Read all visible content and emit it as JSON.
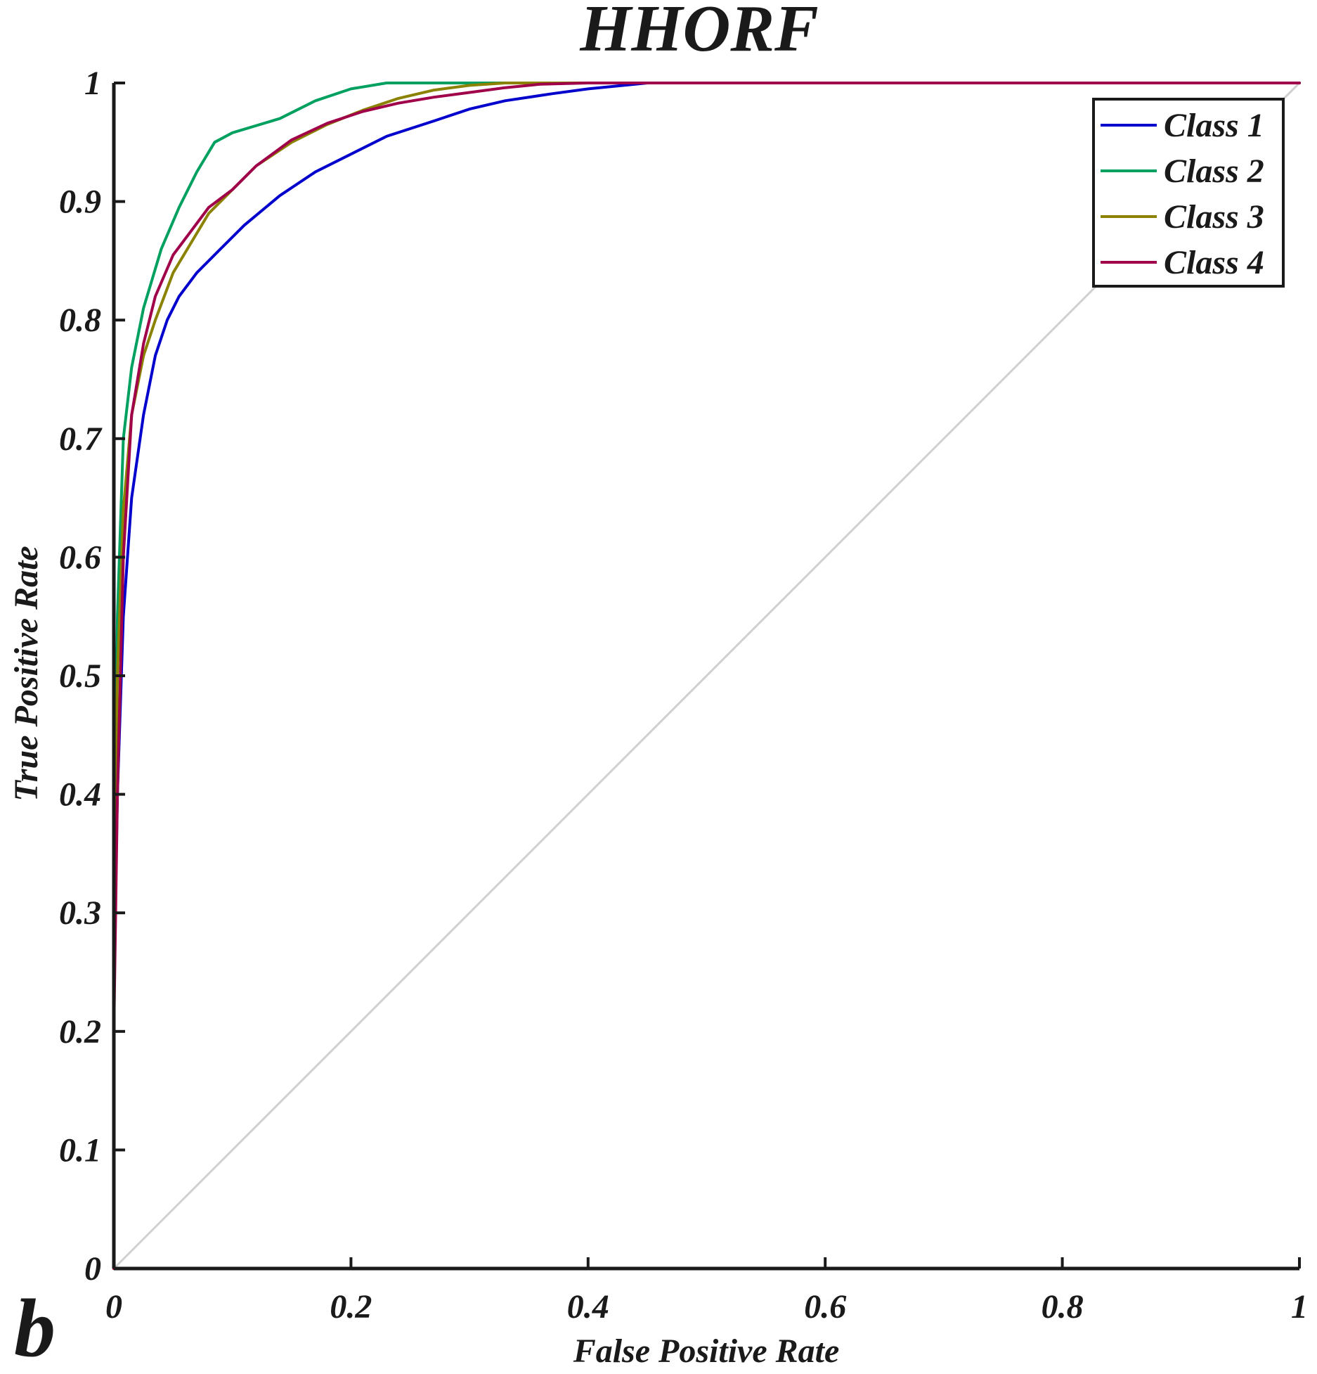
{
  "chart_data": {
    "type": "line",
    "title": "HHORF",
    "panel_label": "b",
    "xlabel": "False Positive Rate",
    "ylabel": "True Positive Rate",
    "xlim": [
      0,
      1
    ],
    "ylim": [
      0,
      1
    ],
    "xticks": [
      0,
      0.2,
      0.4,
      0.6,
      0.8,
      1
    ],
    "xtick_labels": [
      "0",
      "0.2",
      "0.4",
      "0.6",
      "0.8",
      "1"
    ],
    "yticks": [
      0,
      0.1,
      0.2,
      0.3,
      0.4,
      0.5,
      0.6,
      0.7,
      0.8,
      0.9,
      1
    ],
    "ytick_labels": [
      "0",
      "0.1",
      "0.2",
      "0.3",
      "0.4",
      "0.5",
      "0.6",
      "0.7",
      "0.8",
      "0.9",
      "1"
    ],
    "grid": false,
    "legend_position": "top-right",
    "reference_line": {
      "x": [
        0,
        1
      ],
      "y": [
        0,
        1
      ],
      "color": "#d0d0d0"
    },
    "series": [
      {
        "name": "Class 1",
        "color": "#0000cc",
        "x": [
          0,
          0,
          0.003,
          0.008,
          0.015,
          0.025,
          0.035,
          0.045,
          0.055,
          0.07,
          0.09,
          0.11,
          0.14,
          0.17,
          0.2,
          0.23,
          0.27,
          0.3,
          0.33,
          0.37,
          0.4,
          0.43,
          0.45,
          1
        ],
        "y": [
          0,
          0.25,
          0.4,
          0.55,
          0.65,
          0.72,
          0.77,
          0.8,
          0.82,
          0.84,
          0.86,
          0.88,
          0.905,
          0.925,
          0.94,
          0.955,
          0.968,
          0.978,
          0.985,
          0.991,
          0.995,
          0.998,
          1,
          1
        ]
      },
      {
        "name": "Class 2",
        "color": "#00a060",
        "x": [
          0,
          0,
          0.003,
          0.008,
          0.015,
          0.025,
          0.04,
          0.055,
          0.07,
          0.085,
          0.1,
          0.14,
          0.17,
          0.2,
          0.23,
          1
        ],
        "y": [
          0,
          0.3,
          0.55,
          0.7,
          0.76,
          0.81,
          0.86,
          0.895,
          0.925,
          0.95,
          0.958,
          0.97,
          0.985,
          0.995,
          1,
          1
        ]
      },
      {
        "name": "Class 3",
        "color": "#8a8200",
        "x": [
          0,
          0,
          0.003,
          0.008,
          0.015,
          0.025,
          0.035,
          0.05,
          0.065,
          0.08,
          0.1,
          0.12,
          0.15,
          0.18,
          0.21,
          0.24,
          0.27,
          0.3,
          0.33,
          0.36,
          1
        ],
        "y": [
          0,
          0.3,
          0.5,
          0.64,
          0.72,
          0.77,
          0.8,
          0.84,
          0.865,
          0.89,
          0.91,
          0.93,
          0.95,
          0.965,
          0.977,
          0.987,
          0.994,
          0.998,
          1,
          1,
          1
        ]
      },
      {
        "name": "Class 4",
        "color": "#a0004a",
        "x": [
          0,
          0,
          0.003,
          0.008,
          0.015,
          0.025,
          0.035,
          0.05,
          0.065,
          0.08,
          0.1,
          0.12,
          0.15,
          0.18,
          0.21,
          0.24,
          0.27,
          0.3,
          0.33,
          0.36,
          0.4,
          1
        ],
        "y": [
          0,
          0.2,
          0.4,
          0.6,
          0.72,
          0.78,
          0.82,
          0.855,
          0.875,
          0.895,
          0.91,
          0.93,
          0.952,
          0.966,
          0.976,
          0.983,
          0.988,
          0.992,
          0.996,
          0.999,
          1,
          1
        ]
      }
    ]
  }
}
